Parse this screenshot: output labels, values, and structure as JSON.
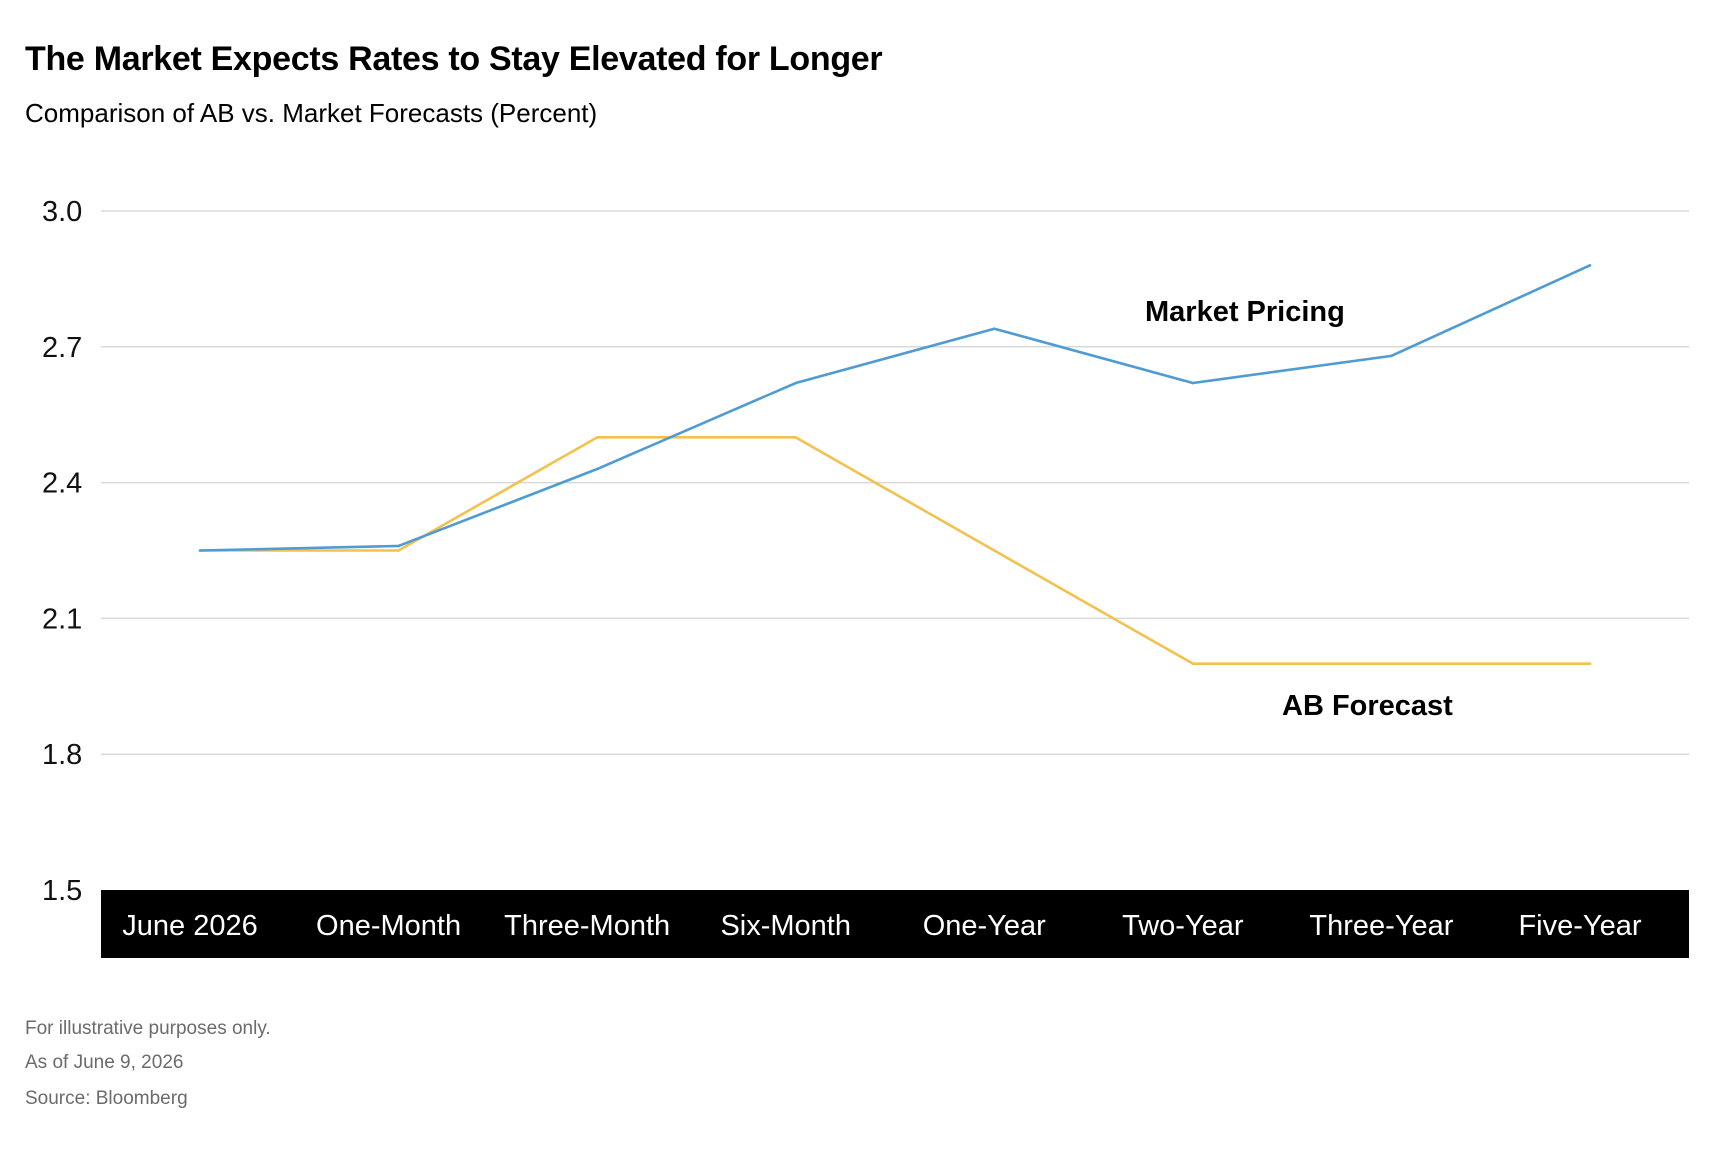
{
  "title": "The Market Expects Rates to Stay Elevated for Longer",
  "subtitle": "Comparison of AB vs. Market Forecasts (Percent)",
  "footnotes": [
    "For illustrative purposes only.",
    "As of June 9, 2026",
    "Source: Bloomberg"
  ],
  "chart_data": {
    "type": "line",
    "title": "The Market Expects Rates to Stay Elevated for Longer",
    "subtitle": "Comparison of AB vs. Market Forecasts (Percent)",
    "categories": [
      "June 2026",
      "One-Month",
      "Three-Month",
      "Six-Month",
      "One-Year",
      "Two-Year",
      "Three-Year",
      "Five-Year"
    ],
    "series": [
      {
        "name": "Market Pricing",
        "color": "#4f9bd2",
        "values": [
          2.25,
          2.26,
          2.43,
          2.62,
          2.74,
          2.62,
          2.68,
          2.88
        ]
      },
      {
        "name": "AB Forecast",
        "color": "#f2c14e",
        "values": [
          2.25,
          2.25,
          2.5,
          2.5,
          2.25,
          2.0,
          2.0,
          2.0
        ]
      }
    ],
    "y_ticks": [
      "3.0",
      "2.7",
      "2.4",
      "2.1",
      "1.8",
      "1.5"
    ],
    "ylim": [
      1.5,
      3.0
    ],
    "grid": true,
    "legend": "inline labels near lines",
    "xlabel": "",
    "ylabel": ""
  }
}
